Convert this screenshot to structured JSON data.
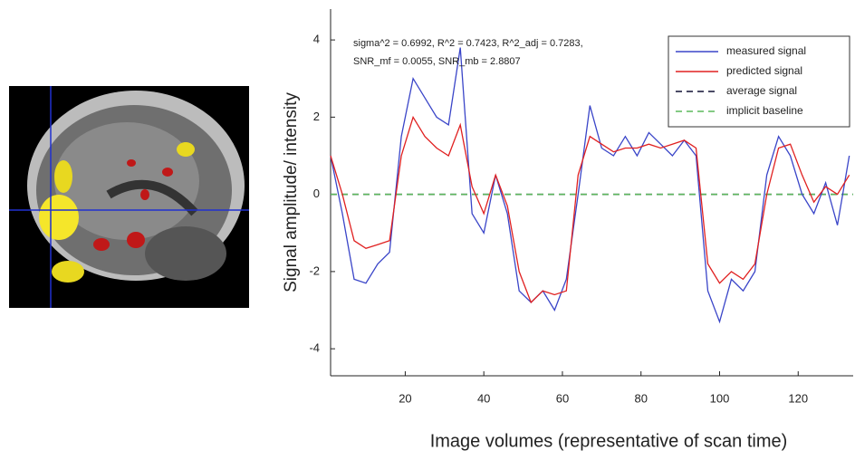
{
  "chart_data": {
    "type": "line",
    "annotations": [
      "sigma^2 = 0.6992, R^2 = 0.7423, R^2_adj = 0.7283,",
      "SNR_mf = 0.0055, SNR_mb = 2.8807"
    ],
    "xlabel": "Image volumes (representative of scan time)",
    "ylabel": "Signal amplitude/ intensity",
    "x": [
      1,
      4,
      7,
      10,
      13,
      16,
      19,
      22,
      25,
      28,
      31,
      34,
      37,
      40,
      43,
      46,
      49,
      52,
      55,
      58,
      61,
      64,
      67,
      70,
      73,
      76,
      79,
      82,
      85,
      88,
      91,
      94,
      97,
      100,
      103,
      106,
      109,
      112,
      115,
      118,
      121,
      124,
      127,
      130,
      133
    ],
    "series": [
      {
        "name": "measured signal",
        "color": "#3a45c8",
        "values": [
          1,
          -0.5,
          -2.2,
          -2.3,
          -1.8,
          -1.5,
          1.5,
          3,
          2.5,
          2,
          1.8,
          3.8,
          -0.5,
          -1,
          0.5,
          -0.5,
          -2.5,
          -2.8,
          -2.5,
          -3,
          -2.2,
          0,
          2.3,
          1.2,
          1,
          1.5,
          1,
          1.6,
          1.3,
          1,
          1.4,
          1,
          -2.5,
          -3.3,
          -2.2,
          -2.5,
          -2,
          0.5,
          1.5,
          1,
          0,
          -0.5,
          0.3,
          -0.8,
          1
        ]
      },
      {
        "name": "predicted signal",
        "color": "#e02020",
        "values": [
          1,
          0,
          -1.2,
          -1.4,
          -1.3,
          -1.2,
          1,
          2,
          1.5,
          1.2,
          1,
          1.8,
          0.2,
          -0.5,
          0.5,
          -0.3,
          -2,
          -2.8,
          -2.5,
          -2.6,
          -2.5,
          0.5,
          1.5,
          1.3,
          1.1,
          1.2,
          1.2,
          1.3,
          1.2,
          1.3,
          1.4,
          1.2,
          -1.8,
          -2.3,
          -2,
          -2.2,
          -1.8,
          0,
          1.2,
          1.3,
          0.5,
          -0.2,
          0.2,
          0,
          0.5
        ]
      }
    ],
    "hlines": [
      {
        "name": "average signal",
        "color": "#111133",
        "y": 0
      },
      {
        "name": "implicit baseline",
        "color": "#5cb85c",
        "y": 0
      }
    ],
    "xlim": [
      1,
      134
    ],
    "ylim": [
      -4.7,
      4.8
    ],
    "xticks": [
      20,
      40,
      60,
      80,
      100,
      120
    ],
    "yticks": [
      -4,
      -2,
      0,
      2,
      4
    ],
    "legend": "upper right"
  }
}
